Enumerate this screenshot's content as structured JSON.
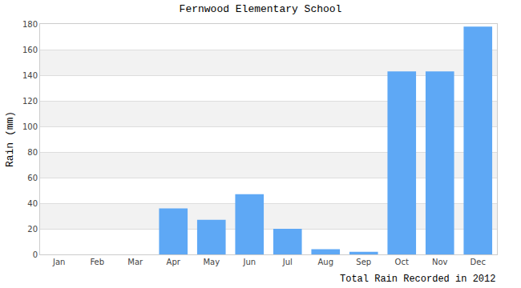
{
  "chart_data": {
    "type": "bar",
    "title": "Fernwood Elementary School",
    "x_label": "Total Rain Recorded in 2012",
    "y_label": "Rain (mm)",
    "categories": [
      "Jan",
      "Feb",
      "Mar",
      "Apr",
      "May",
      "Jun",
      "Jul",
      "Aug",
      "Sep",
      "Oct",
      "Nov",
      "Dec"
    ],
    "values": [
      0,
      0,
      0,
      36,
      27,
      47,
      20,
      4,
      2,
      143,
      143,
      178
    ],
    "color": "#5ea8f5",
    "ylim": [
      0,
      180
    ],
    "yticks": [
      0,
      20,
      40,
      60,
      80,
      100,
      120,
      140,
      160,
      180
    ],
    "grid": true
  }
}
